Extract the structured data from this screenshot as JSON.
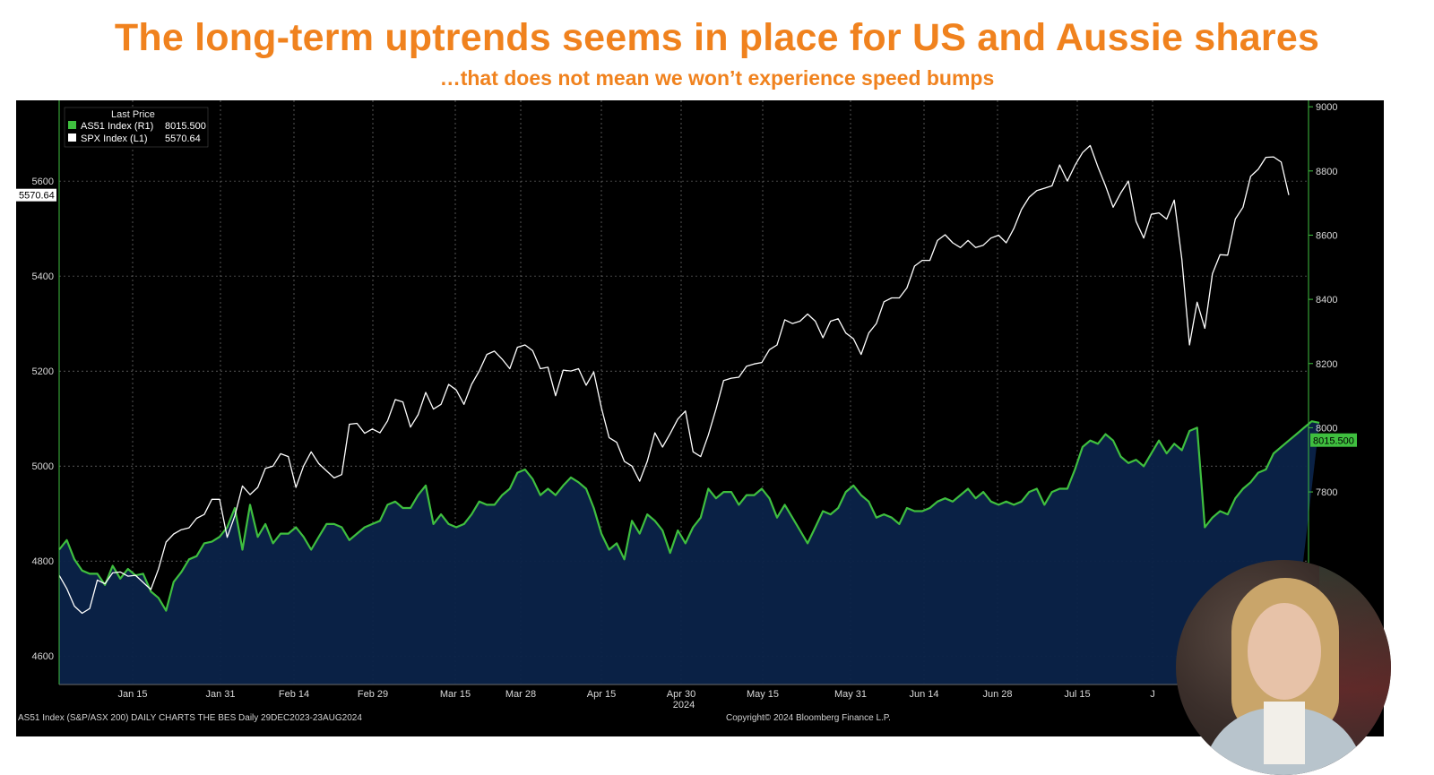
{
  "title": "The long-term uptrends seems in place for US and Aussie shares",
  "subtitle": "…that does not mean we won’t experience speed bumps",
  "legend": {
    "header": "Last Price",
    "items": [
      {
        "label": "AS51 Index  (R1)",
        "value": "8015.500",
        "color": "#3fbf3f"
      },
      {
        "label": "SPX Index  (L1)",
        "value": "5570.64",
        "color": "#ffffff"
      }
    ]
  },
  "last_value_tags": {
    "spx": "5570.64",
    "as51": "8015.500"
  },
  "footer": {
    "left": "AS51 Index (S&P/ASX 200) DAILY CHARTS THE BES  Daily 29DEC2023-23AUG2024",
    "right": "Copyright© 2024 Bloomberg Finance L.P."
  },
  "chart_data": {
    "type": "line",
    "x_tick_labels": [
      "Jan 15",
      "Jan 31",
      "Feb 14",
      "Feb 29",
      "Mar 15",
      "Mar 28",
      "Apr 15",
      "Apr 30",
      "May 15",
      "May 31",
      "Jun 14",
      "Jun 28",
      "Jul 15",
      "J"
    ],
    "x_year_label": "2024",
    "y_left": {
      "ticks": [
        4600,
        4800,
        5000,
        5200,
        5400,
        5600
      ],
      "range": [
        4540,
        5770
      ]
    },
    "y_right": {
      "ticks": [
        7800,
        8000,
        8200,
        8400,
        8600,
        8800,
        9000
      ],
      "range": [
        7200,
        9020
      ]
    },
    "series": [
      {
        "name": "SPX Index",
        "axis": "left",
        "color": "#ffffff",
        "values": [
          4770,
          4742,
          4705,
          4690,
          4700,
          4760,
          4752,
          4775,
          4777,
          4768,
          4770,
          4755,
          4740,
          4783,
          4840,
          4857,
          4866,
          4870,
          4890,
          4898,
          4930,
          4930,
          4850,
          4895,
          4958,
          4940,
          4955,
          4995,
          5000,
          5026,
          5020,
          4955,
          5000,
          5030,
          5005,
          4990,
          4975,
          4982,
          5088,
          5090,
          5069,
          5078,
          5070,
          5095,
          5140,
          5135,
          5082,
          5108,
          5155,
          5120,
          5130,
          5172,
          5160,
          5130,
          5172,
          5200,
          5235,
          5242,
          5225,
          5205,
          5250,
          5255,
          5243,
          5205,
          5208,
          5148,
          5202,
          5200,
          5205,
          5170,
          5198,
          5123,
          5060,
          5050,
          5010,
          5000,
          4968,
          5010,
          5070,
          5040,
          5068,
          5099,
          5116,
          5030,
          5020,
          5065,
          5120,
          5180,
          5185,
          5187,
          5210,
          5215,
          5218,
          5245,
          5255,
          5308,
          5300,
          5305,
          5320,
          5305,
          5270,
          5305,
          5310,
          5280,
          5268,
          5235,
          5280,
          5300,
          5346,
          5354,
          5354,
          5375,
          5421,
          5433,
          5433,
          5475,
          5487,
          5470,
          5460,
          5475,
          5460,
          5465,
          5480,
          5486,
          5470,
          5500,
          5540,
          5566,
          5580,
          5585,
          5590,
          5634,
          5600,
          5633,
          5660,
          5675,
          5630,
          5590,
          5545,
          5575,
          5600,
          5515,
          5480,
          5530,
          5533,
          5520,
          5560,
          5435,
          5255,
          5345,
          5290,
          5405,
          5445,
          5444,
          5520,
          5545,
          5610,
          5625,
          5650,
          5651,
          5640,
          5570.64
        ]
      },
      {
        "name": "AS51 Index",
        "axis": "right",
        "color": "#3fbf3f",
        "values": [
          7620,
          7650,
          7590,
          7555,
          7545,
          7545,
          7510,
          7570,
          7530,
          7560,
          7540,
          7545,
          7490,
          7470,
          7430,
          7520,
          7550,
          7590,
          7600,
          7640,
          7645,
          7660,
          7690,
          7750,
          7620,
          7760,
          7660,
          7700,
          7640,
          7670,
          7670,
          7690,
          7660,
          7620,
          7660,
          7700,
          7700,
          7690,
          7650,
          7670,
          7690,
          7700,
          7710,
          7760,
          7770,
          7750,
          7750,
          7790,
          7820,
          7700,
          7730,
          7700,
          7690,
          7700,
          7730,
          7770,
          7760,
          7760,
          7790,
          7810,
          7860,
          7870,
          7840,
          7790,
          7810,
          7790,
          7820,
          7845,
          7830,
          7810,
          7750,
          7670,
          7620,
          7640,
          7590,
          7710,
          7670,
          7730,
          7710,
          7680,
          7610,
          7680,
          7640,
          7690,
          7720,
          7810,
          7780,
          7800,
          7800,
          7760,
          7790,
          7790,
          7810,
          7780,
          7720,
          7760,
          7720,
          7680,
          7640,
          7690,
          7740,
          7730,
          7750,
          7800,
          7820,
          7790,
          7770,
          7720,
          7730,
          7720,
          7700,
          7750,
          7740,
          7740,
          7750,
          7770,
          7780,
          7770,
          7790,
          7810,
          7780,
          7800,
          7770,
          7760,
          7770,
          7760,
          7770,
          7800,
          7810,
          7760,
          7800,
          7810,
          7810,
          7870,
          7940,
          7960,
          7950,
          7980,
          7960,
          7910,
          7890,
          7900,
          7880,
          7920,
          7960,
          7920,
          7950,
          7930,
          7990,
          8000,
          7690,
          7720,
          7740,
          7730,
          7780,
          7810,
          7830,
          7860,
          7870,
          7920,
          7940,
          7960,
          7980,
          8000,
          8020,
          8015.5
        ]
      }
    ]
  }
}
